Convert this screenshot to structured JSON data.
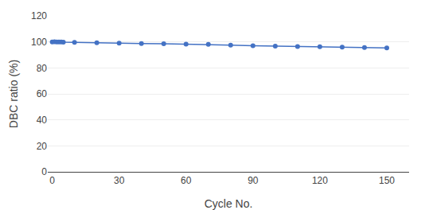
{
  "chart_data": {
    "type": "line",
    "xlabel": "Cycle No.",
    "ylabel": "DBC ratio (%)",
    "x": [
      0,
      1,
      2,
      3,
      4,
      5,
      10,
      20,
      30,
      40,
      50,
      60,
      70,
      80,
      90,
      100,
      110,
      120,
      130,
      140,
      150
    ],
    "values": [
      100.0,
      100.1,
      100.0,
      99.9,
      100.0,
      99.8,
      99.6,
      99.3,
      99.0,
      98.7,
      98.5,
      98.3,
      98.1,
      97.5,
      97.1,
      96.8,
      96.5,
      96.2,
      95.9,
      95.6,
      95.3
    ],
    "color": "#4472C4",
    "marker": "circle",
    "xlim": [
      -2,
      160
    ],
    "ylim": [
      0,
      120
    ],
    "xticks": [
      0,
      30,
      60,
      90,
      120,
      150
    ],
    "yticks": [
      0,
      20,
      40,
      60,
      80,
      100,
      120
    ],
    "grid": "y"
  }
}
